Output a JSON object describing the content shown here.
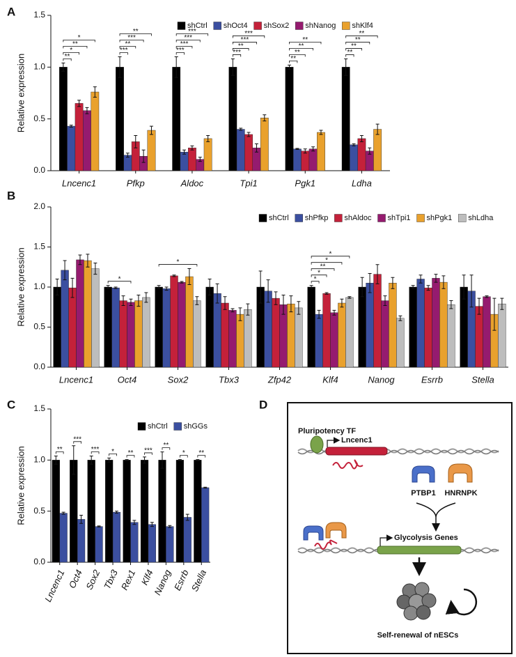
{
  "chart_data": [
    {
      "type": "bar",
      "panel": "A",
      "ylabel": "Relative expression",
      "categories": [
        "Lncenc1",
        "Pfkp",
        "Aldoc",
        "Tpi1",
        "Pgk1",
        "Ldha"
      ],
      "series": [
        {
          "name": "shCtrl",
          "color": "#000000",
          "values": [
            1,
            1,
            1,
            1,
            1,
            1
          ],
          "errors": [
            0.04,
            0.1,
            0.1,
            0.08,
            0.02,
            0.08
          ]
        },
        {
          "name": "shOct4",
          "color": "#3b4fa0",
          "values": [
            0.43,
            0.15,
            0.18,
            0.4,
            0.21,
            0.25
          ],
          "errors": [
            0.01,
            0.02,
            0.02,
            0.01,
            0.005,
            0.01
          ]
        },
        {
          "name": "shSox2",
          "color": "#c4213a",
          "values": [
            0.65,
            0.28,
            0.22,
            0.35,
            0.19,
            0.31
          ],
          "errors": [
            0.03,
            0.06,
            0.02,
            0.02,
            0.02,
            0.03
          ]
        },
        {
          "name": "shNanog",
          "color": "#951b6f",
          "values": [
            0.58,
            0.14,
            0.11,
            0.22,
            0.21,
            0.19
          ],
          "errors": [
            0.03,
            0.06,
            0.02,
            0.04,
            0.02,
            0.03
          ]
        },
        {
          "name": "shKlf4",
          "color": "#e9a12d",
          "values": [
            0.76,
            0.39,
            0.31,
            0.51,
            0.37,
            0.4
          ],
          "errors": [
            0.05,
            0.04,
            0.03,
            0.03,
            0.02,
            0.05
          ]
        }
      ],
      "significance": [
        [
          "**",
          "*",
          "**",
          "*"
        ],
        [
          "***",
          "**",
          "***",
          "**"
        ],
        [
          "***",
          "***",
          "***",
          "***"
        ],
        [
          "***",
          "**",
          "***",
          "***"
        ],
        [
          "**",
          "**",
          "**",
          "**"
        ],
        [
          "**",
          "**",
          "**",
          "**"
        ]
      ],
      "ylim": [
        0,
        1.5
      ],
      "yticks": [
        {
          "value": 0,
          "label": "0.0"
        },
        0.5,
        {
          "value": 1,
          "label": "1.0"
        },
        1.5
      ],
      "legend": "upper right"
    },
    {
      "type": "bar",
      "panel": "B",
      "ylabel": "Relative expression",
      "categories": [
        "Lncenc1",
        "Oct4",
        "Sox2",
        "Tbx3",
        "Zfp42",
        "Klf4",
        "Nanog",
        "Esrrb",
        "Stella"
      ],
      "series": [
        {
          "name": "shCtrl",
          "color": "#000000",
          "values": [
            1,
            1,
            1,
            1,
            1,
            1,
            1,
            1,
            1
          ],
          "errors": [
            0.1,
            0.02,
            0.02,
            0.1,
            0.2,
            0.02,
            0.12,
            0.02,
            0.15
          ]
        },
        {
          "name": "shPfkp",
          "color": "#3b4fa0",
          "values": [
            1.21,
            0.99,
            0.98,
            0.92,
            0.95,
            0.66,
            1.05,
            1.1,
            0.95
          ],
          "errors": [
            0.12,
            0.01,
            0.02,
            0.12,
            0.14,
            0.05,
            0.12,
            0.05,
            0.2
          ]
        },
        {
          "name": "shAldoc",
          "color": "#c4213a",
          "values": [
            0.99,
            0.83,
            1.14,
            0.8,
            0.86,
            0.92,
            1.16,
            0.99,
            0.76
          ],
          "errors": [
            0.12,
            0.06,
            0.01,
            0.08,
            0.08,
            0.01,
            0.12,
            0.03,
            0.1
          ]
        },
        {
          "name": "shTpi1",
          "color": "#951b6f",
          "values": [
            1.34,
            0.81,
            1.06,
            0.71,
            0.78,
            0.68,
            0.83,
            1.11,
            0.88
          ],
          "errors": [
            0.06,
            0.04,
            0.01,
            0.02,
            0.12,
            0.03,
            0.06,
            0.05,
            0.01
          ]
        },
        {
          "name": "shPgk1",
          "color": "#e9a12d",
          "values": [
            1.33,
            0.83,
            1.13,
            0.66,
            0.79,
            0.8,
            1.05,
            1.06,
            0.66
          ],
          "errors": [
            0.08,
            0.07,
            0.1,
            0.08,
            0.1,
            0.05,
            0.07,
            0.08,
            0.2
          ]
        },
        {
          "name": "shLdha",
          "color": "#bdbdbd",
          "values": [
            1.23,
            0.87,
            0.83,
            0.72,
            0.74,
            0.87,
            0.61,
            0.78,
            0.79
          ],
          "errors": [
            0.07,
            0.06,
            0.05,
            0.07,
            0.08,
            0.01,
            0.03,
            0.05,
            0.07
          ]
        }
      ],
      "significance": [
        null,
        [
          null,
          null,
          "*"
        ],
        [
          null,
          null,
          null,
          null,
          "*"
        ],
        null,
        null,
        [
          "*",
          "*",
          "**",
          "*",
          "*"
        ],
        null,
        null,
        null
      ],
      "ylim": [
        0,
        2
      ],
      "yticks": [
        {
          "value": 0,
          "label": "0.0"
        },
        0.5,
        {
          "value": 1,
          "label": "1.0"
        },
        1.5,
        {
          "value": 2,
          "label": "2.0"
        }
      ],
      "legend": "upper right"
    },
    {
      "type": "bar",
      "panel": "C",
      "ylabel": "Relative expression",
      "categories": [
        "Lncenc1",
        "Oct4",
        "Sox2",
        "Tbx3",
        "Rex1",
        "Klf4",
        "Nanog",
        "Esrrb",
        "Stella"
      ],
      "series": [
        {
          "name": "shCtrl",
          "color": "#000000",
          "values": [
            1,
            1,
            1,
            1,
            1,
            1,
            1,
            1,
            1
          ],
          "errors": [
            0.04,
            0.14,
            0.04,
            0.02,
            0.005,
            0.03,
            0.08,
            0.005,
            0.005
          ]
        },
        {
          "name": "shGGs",
          "color": "#3b4fa0",
          "values": [
            0.48,
            0.42,
            0.35,
            0.49,
            0.39,
            0.37,
            0.35,
            0.44,
            0.73
          ],
          "errors": [
            0.01,
            0.04,
            0.005,
            0.01,
            0.02,
            0.02,
            0.01,
            0.03,
            0.005
          ]
        }
      ],
      "significance": [
        [
          "**"
        ],
        [
          "***"
        ],
        [
          "***"
        ],
        [
          "*"
        ],
        [
          "**"
        ],
        [
          "***"
        ],
        [
          "**"
        ],
        [
          "*"
        ],
        [
          "**"
        ]
      ],
      "ylim": [
        0,
        1.5
      ],
      "yticks": [
        {
          "value": 0,
          "label": "0.0"
        },
        0.5,
        {
          "value": 1,
          "label": "1.0"
        },
        1.5
      ],
      "legend": "upper right"
    }
  ],
  "diagram": {
    "panel": "D",
    "factor": "Pluripotency TF",
    "gene": "Lncenc1",
    "protein1": "PTBP1",
    "protein2": "HNRNPK",
    "target": "Glycolysis Genes",
    "outcome": "Self-renewal of nESCs"
  }
}
